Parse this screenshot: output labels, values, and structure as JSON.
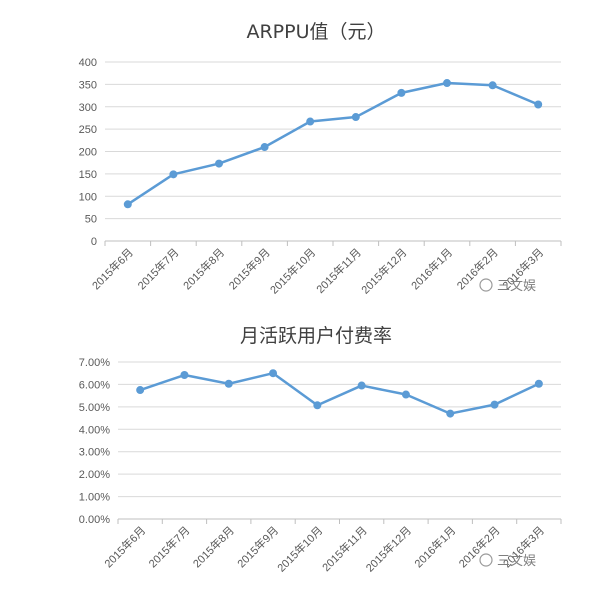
{
  "chart_data": [
    {
      "type": "line",
      "title": "ARPPU值（元）",
      "categories": [
        "2015年6月",
        "2015年7月",
        "2015年8月",
        "2015年9月",
        "2015年10月",
        "2015年11月",
        "2015年12月",
        "2016年1月",
        "2016年2月",
        "2016年3月"
      ],
      "series": [
        {
          "values": [
            82,
            149,
            173,
            210,
            267,
            277,
            331,
            353,
            348,
            305
          ]
        }
      ],
      "ylim": [
        0,
        400
      ],
      "yticks": [
        "0",
        "50",
        "100",
        "150",
        "200",
        "250",
        "300",
        "350",
        "400"
      ],
      "grid": true,
      "line_color": "#5b9bd5"
    },
    {
      "type": "line",
      "title": "月活跃用户付费率",
      "categories": [
        "2015年6月",
        "2015年7月",
        "2015年8月",
        "2015年9月",
        "2015年10月",
        "2015年11月",
        "2015年12月",
        "2016年1月",
        "2016年2月",
        "2016年3月"
      ],
      "series": [
        {
          "values": [
            5.75,
            6.42,
            6.03,
            6.5,
            5.07,
            5.95,
            5.55,
            4.7,
            5.1,
            6.03
          ]
        }
      ],
      "ylim": [
        0,
        7
      ],
      "yticks": [
        "0.00%",
        "1.00%",
        "2.00%",
        "3.00%",
        "4.00%",
        "5.00%",
        "6.00%",
        "7.00%"
      ],
      "grid": true,
      "line_color": "#5b9bd5"
    }
  ],
  "watermark": "三文娱"
}
